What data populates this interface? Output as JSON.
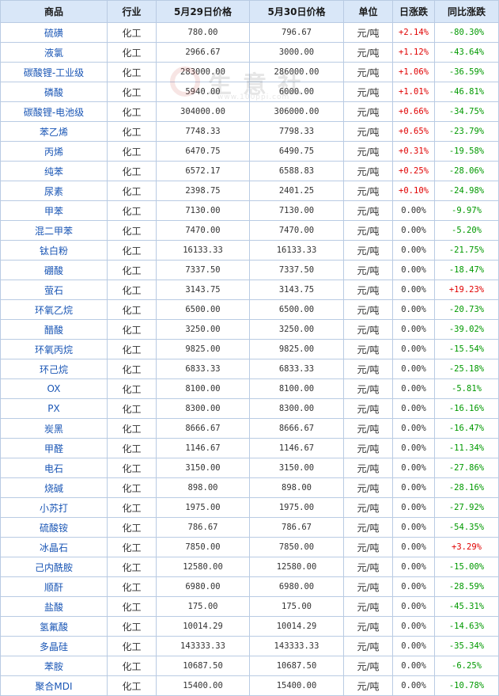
{
  "headers": {
    "name": "商品",
    "industry": "行业",
    "price1": "5月29日价格",
    "price2": "5月30日价格",
    "unit": "单位",
    "daily": "日涨跌",
    "yoy": "同比涨跌"
  },
  "watermark": {
    "text": "生意社",
    "url": "www.100ppi.com"
  },
  "colors": {
    "header_bg": "#d9e7f8",
    "border": "#b9cbe3",
    "name": "#1a56b5",
    "up": "#e00000",
    "down": "#009900"
  },
  "rows": [
    {
      "name": "硫磺",
      "industry": "化工",
      "p1": "780.00",
      "p2": "796.67",
      "unit": "元/吨",
      "daily": "+2.14%",
      "daily_dir": "up",
      "yoy": "-80.30%",
      "yoy_dir": "down"
    },
    {
      "name": "液氯",
      "industry": "化工",
      "p1": "2966.67",
      "p2": "3000.00",
      "unit": "元/吨",
      "daily": "+1.12%",
      "daily_dir": "up",
      "yoy": "-43.64%",
      "yoy_dir": "down"
    },
    {
      "name": "碳酸锂-工业级",
      "industry": "化工",
      "p1": "283000.00",
      "p2": "286000.00",
      "unit": "元/吨",
      "daily": "+1.06%",
      "daily_dir": "up",
      "yoy": "-36.59%",
      "yoy_dir": "down"
    },
    {
      "name": "磷酸",
      "industry": "化工",
      "p1": "5940.00",
      "p2": "6000.00",
      "unit": "元/吨",
      "daily": "+1.01%",
      "daily_dir": "up",
      "yoy": "-46.81%",
      "yoy_dir": "down"
    },
    {
      "name": "碳酸锂-电池级",
      "industry": "化工",
      "p1": "304000.00",
      "p2": "306000.00",
      "unit": "元/吨",
      "daily": "+0.66%",
      "daily_dir": "up",
      "yoy": "-34.75%",
      "yoy_dir": "down"
    },
    {
      "name": "苯乙烯",
      "industry": "化工",
      "p1": "7748.33",
      "p2": "7798.33",
      "unit": "元/吨",
      "daily": "+0.65%",
      "daily_dir": "up",
      "yoy": "-23.79%",
      "yoy_dir": "down"
    },
    {
      "name": "丙烯",
      "industry": "化工",
      "p1": "6470.75",
      "p2": "6490.75",
      "unit": "元/吨",
      "daily": "+0.31%",
      "daily_dir": "up",
      "yoy": "-19.58%",
      "yoy_dir": "down"
    },
    {
      "name": "纯苯",
      "industry": "化工",
      "p1": "6572.17",
      "p2": "6588.83",
      "unit": "元/吨",
      "daily": "+0.25%",
      "daily_dir": "up",
      "yoy": "-28.06%",
      "yoy_dir": "down"
    },
    {
      "name": "尿素",
      "industry": "化工",
      "p1": "2398.75",
      "p2": "2401.25",
      "unit": "元/吨",
      "daily": "+0.10%",
      "daily_dir": "up",
      "yoy": "-24.98%",
      "yoy_dir": "down"
    },
    {
      "name": "甲苯",
      "industry": "化工",
      "p1": "7130.00",
      "p2": "7130.00",
      "unit": "元/吨",
      "daily": "0.00%",
      "daily_dir": "flat",
      "yoy": "-9.97%",
      "yoy_dir": "down"
    },
    {
      "name": "混二甲苯",
      "industry": "化工",
      "p1": "7470.00",
      "p2": "7470.00",
      "unit": "元/吨",
      "daily": "0.00%",
      "daily_dir": "flat",
      "yoy": "-5.20%",
      "yoy_dir": "down"
    },
    {
      "name": "钛白粉",
      "industry": "化工",
      "p1": "16133.33",
      "p2": "16133.33",
      "unit": "元/吨",
      "daily": "0.00%",
      "daily_dir": "flat",
      "yoy": "-21.75%",
      "yoy_dir": "down"
    },
    {
      "name": "硼酸",
      "industry": "化工",
      "p1": "7337.50",
      "p2": "7337.50",
      "unit": "元/吨",
      "daily": "0.00%",
      "daily_dir": "flat",
      "yoy": "-18.47%",
      "yoy_dir": "down"
    },
    {
      "name": "萤石",
      "industry": "化工",
      "p1": "3143.75",
      "p2": "3143.75",
      "unit": "元/吨",
      "daily": "0.00%",
      "daily_dir": "flat",
      "yoy": "+19.23%",
      "yoy_dir": "up"
    },
    {
      "name": "环氧乙烷",
      "industry": "化工",
      "p1": "6500.00",
      "p2": "6500.00",
      "unit": "元/吨",
      "daily": "0.00%",
      "daily_dir": "flat",
      "yoy": "-20.73%",
      "yoy_dir": "down"
    },
    {
      "name": "醋酸",
      "industry": "化工",
      "p1": "3250.00",
      "p2": "3250.00",
      "unit": "元/吨",
      "daily": "0.00%",
      "daily_dir": "flat",
      "yoy": "-39.02%",
      "yoy_dir": "down"
    },
    {
      "name": "环氧丙烷",
      "industry": "化工",
      "p1": "9825.00",
      "p2": "9825.00",
      "unit": "元/吨",
      "daily": "0.00%",
      "daily_dir": "flat",
      "yoy": "-15.54%",
      "yoy_dir": "down"
    },
    {
      "name": "环己烷",
      "industry": "化工",
      "p1": "6833.33",
      "p2": "6833.33",
      "unit": "元/吨",
      "daily": "0.00%",
      "daily_dir": "flat",
      "yoy": "-25.18%",
      "yoy_dir": "down"
    },
    {
      "name": "OX",
      "industry": "化工",
      "p1": "8100.00",
      "p2": "8100.00",
      "unit": "元/吨",
      "daily": "0.00%",
      "daily_dir": "flat",
      "yoy": "-5.81%",
      "yoy_dir": "down"
    },
    {
      "name": "PX",
      "industry": "化工",
      "p1": "8300.00",
      "p2": "8300.00",
      "unit": "元/吨",
      "daily": "0.00%",
      "daily_dir": "flat",
      "yoy": "-16.16%",
      "yoy_dir": "down"
    },
    {
      "name": "炭黑",
      "industry": "化工",
      "p1": "8666.67",
      "p2": "8666.67",
      "unit": "元/吨",
      "daily": "0.00%",
      "daily_dir": "flat",
      "yoy": "-16.47%",
      "yoy_dir": "down"
    },
    {
      "name": "甲醛",
      "industry": "化工",
      "p1": "1146.67",
      "p2": "1146.67",
      "unit": "元/吨",
      "daily": "0.00%",
      "daily_dir": "flat",
      "yoy": "-11.34%",
      "yoy_dir": "down"
    },
    {
      "name": "电石",
      "industry": "化工",
      "p1": "3150.00",
      "p2": "3150.00",
      "unit": "元/吨",
      "daily": "0.00%",
      "daily_dir": "flat",
      "yoy": "-27.86%",
      "yoy_dir": "down"
    },
    {
      "name": "烧碱",
      "industry": "化工",
      "p1": "898.00",
      "p2": "898.00",
      "unit": "元/吨",
      "daily": "0.00%",
      "daily_dir": "flat",
      "yoy": "-28.16%",
      "yoy_dir": "down"
    },
    {
      "name": "小苏打",
      "industry": "化工",
      "p1": "1975.00",
      "p2": "1975.00",
      "unit": "元/吨",
      "daily": "0.00%",
      "daily_dir": "flat",
      "yoy": "-27.92%",
      "yoy_dir": "down"
    },
    {
      "name": "硫酸铵",
      "industry": "化工",
      "p1": "786.67",
      "p2": "786.67",
      "unit": "元/吨",
      "daily": "0.00%",
      "daily_dir": "flat",
      "yoy": "-54.35%",
      "yoy_dir": "down"
    },
    {
      "name": "冰晶石",
      "industry": "化工",
      "p1": "7850.00",
      "p2": "7850.00",
      "unit": "元/吨",
      "daily": "0.00%",
      "daily_dir": "flat",
      "yoy": "+3.29%",
      "yoy_dir": "up"
    },
    {
      "name": "己内酰胺",
      "industry": "化工",
      "p1": "12580.00",
      "p2": "12580.00",
      "unit": "元/吨",
      "daily": "0.00%",
      "daily_dir": "flat",
      "yoy": "-15.00%",
      "yoy_dir": "down"
    },
    {
      "name": "顺酐",
      "industry": "化工",
      "p1": "6980.00",
      "p2": "6980.00",
      "unit": "元/吨",
      "daily": "0.00%",
      "daily_dir": "flat",
      "yoy": "-28.59%",
      "yoy_dir": "down"
    },
    {
      "name": "盐酸",
      "industry": "化工",
      "p1": "175.00",
      "p2": "175.00",
      "unit": "元/吨",
      "daily": "0.00%",
      "daily_dir": "flat",
      "yoy": "-45.31%",
      "yoy_dir": "down"
    },
    {
      "name": "氢氟酸",
      "industry": "化工",
      "p1": "10014.29",
      "p2": "10014.29",
      "unit": "元/吨",
      "daily": "0.00%",
      "daily_dir": "flat",
      "yoy": "-14.63%",
      "yoy_dir": "down"
    },
    {
      "name": "多晶硅",
      "industry": "化工",
      "p1": "143333.33",
      "p2": "143333.33",
      "unit": "元/吨",
      "daily": "0.00%",
      "daily_dir": "flat",
      "yoy": "-35.34%",
      "yoy_dir": "down"
    },
    {
      "name": "苯胺",
      "industry": "化工",
      "p1": "10687.50",
      "p2": "10687.50",
      "unit": "元/吨",
      "daily": "0.00%",
      "daily_dir": "flat",
      "yoy": "-6.25%",
      "yoy_dir": "down"
    },
    {
      "name": "聚合MDI",
      "industry": "化工",
      "p1": "15400.00",
      "p2": "15400.00",
      "unit": "元/吨",
      "daily": "0.00%",
      "daily_dir": "flat",
      "yoy": "-10.78%",
      "yoy_dir": "down"
    }
  ]
}
